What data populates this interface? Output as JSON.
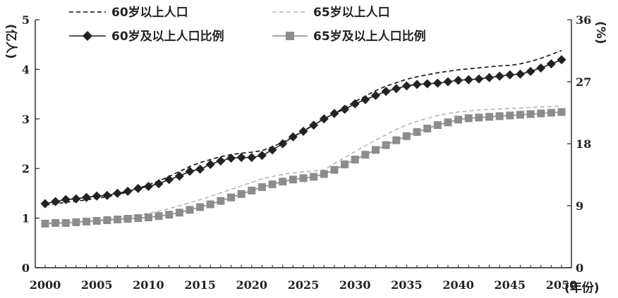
{
  "chart_data": {
    "type": "line",
    "title": "",
    "x": [
      2000,
      2001,
      2002,
      2003,
      2004,
      2005,
      2006,
      2007,
      2008,
      2009,
      2010,
      2011,
      2012,
      2013,
      2014,
      2015,
      2016,
      2017,
      2018,
      2019,
      2020,
      2021,
      2022,
      2023,
      2024,
      2025,
      2026,
      2027,
      2028,
      2029,
      2030,
      2031,
      2032,
      2033,
      2034,
      2035,
      2036,
      2037,
      2038,
      2039,
      2040,
      2041,
      2042,
      2043,
      2044,
      2045,
      2046,
      2047,
      2048,
      2049,
      2050
    ],
    "x_ticks": [
      "2000",
      "2005",
      "2010",
      "2015",
      "2020",
      "2025",
      "2030",
      "2035",
      "2040",
      "2045",
      "2050"
    ],
    "xlabel": "(年份)",
    "y_left": {
      "label": "(亿人)",
      "lim": [
        0,
        5
      ],
      "ticks": [
        "0",
        "1",
        "2",
        "3",
        "4",
        "5"
      ]
    },
    "y_right": {
      "label": "(%)",
      "lim": [
        0,
        36
      ],
      "ticks": [
        "0",
        "9",
        "18",
        "27",
        "36"
      ]
    },
    "series": [
      {
        "name": "60岁以上人口",
        "axis": "left",
        "style": "dashed",
        "color": "#111111",
        "values": [
          1.26,
          1.29,
          1.32,
          1.34,
          1.37,
          1.4,
          1.43,
          1.47,
          1.53,
          1.6,
          1.67,
          1.75,
          1.84,
          1.94,
          2.04,
          2.12,
          2.18,
          2.24,
          2.28,
          2.31,
          2.33,
          2.36,
          2.44,
          2.53,
          2.64,
          2.76,
          2.88,
          3.0,
          3.11,
          3.23,
          3.35,
          3.46,
          3.57,
          3.66,
          3.73,
          3.8,
          3.85,
          3.89,
          3.93,
          3.96,
          3.99,
          4.01,
          4.03,
          4.05,
          4.07,
          4.08,
          4.11,
          4.16,
          4.22,
          4.3,
          4.38
        ]
      },
      {
        "name": "65岁以上人口",
        "axis": "left",
        "style": "dashed",
        "color": "#b5b5b5",
        "values": [
          0.88,
          0.89,
          0.91,
          0.92,
          0.94,
          0.96,
          0.98,
          1.0,
          1.03,
          1.06,
          1.1,
          1.14,
          1.19,
          1.25,
          1.31,
          1.37,
          1.44,
          1.51,
          1.58,
          1.65,
          1.72,
          1.79,
          1.84,
          1.88,
          1.91,
          1.93,
          1.95,
          1.97,
          2.1,
          2.22,
          2.34,
          2.46,
          2.57,
          2.68,
          2.79,
          2.88,
          2.95,
          3.01,
          3.07,
          3.11,
          3.14,
          3.16,
          3.18,
          3.19,
          3.2,
          3.21,
          3.22,
          3.23,
          3.24,
          3.25,
          3.26
        ]
      },
      {
        "name": "60岁及以上人口比例",
        "axis": "right",
        "style": "diamond",
        "color": "#222222",
        "values": [
          9.3,
          9.6,
          9.9,
          10.0,
          10.2,
          10.4,
          10.5,
          10.8,
          11.1,
          11.5,
          11.8,
          12.2,
          12.8,
          13.3,
          14.0,
          14.3,
          15.0,
          15.5,
          15.9,
          16.0,
          16.0,
          16.3,
          17.1,
          18.0,
          19.0,
          19.8,
          20.7,
          21.6,
          22.4,
          23.0,
          23.8,
          24.4,
          25.0,
          25.6,
          26.0,
          26.4,
          26.6,
          26.7,
          26.8,
          27.0,
          27.2,
          27.3,
          27.4,
          27.6,
          27.8,
          28.0,
          28.1,
          28.5,
          29.0,
          29.6,
          30.2
        ]
      },
      {
        "name": "65岁及以上人口比例",
        "axis": "right",
        "style": "square",
        "color": "#8c8c8c",
        "values": [
          6.4,
          6.5,
          6.5,
          6.6,
          6.7,
          6.8,
          6.9,
          7.0,
          7.1,
          7.2,
          7.3,
          7.5,
          7.7,
          8.0,
          8.4,
          8.8,
          9.2,
          9.7,
          10.2,
          10.7,
          11.2,
          11.7,
          12.1,
          12.5,
          12.8,
          13.0,
          13.2,
          13.6,
          14.2,
          15.0,
          15.7,
          16.4,
          17.1,
          17.8,
          18.5,
          19.1,
          19.7,
          20.2,
          20.7,
          21.1,
          21.5,
          21.7,
          21.8,
          21.9,
          22.0,
          22.1,
          22.2,
          22.3,
          22.4,
          22.5,
          22.6
        ]
      }
    ],
    "legend": {
      "placement": "top",
      "columns": 2
    },
    "grid": false
  }
}
